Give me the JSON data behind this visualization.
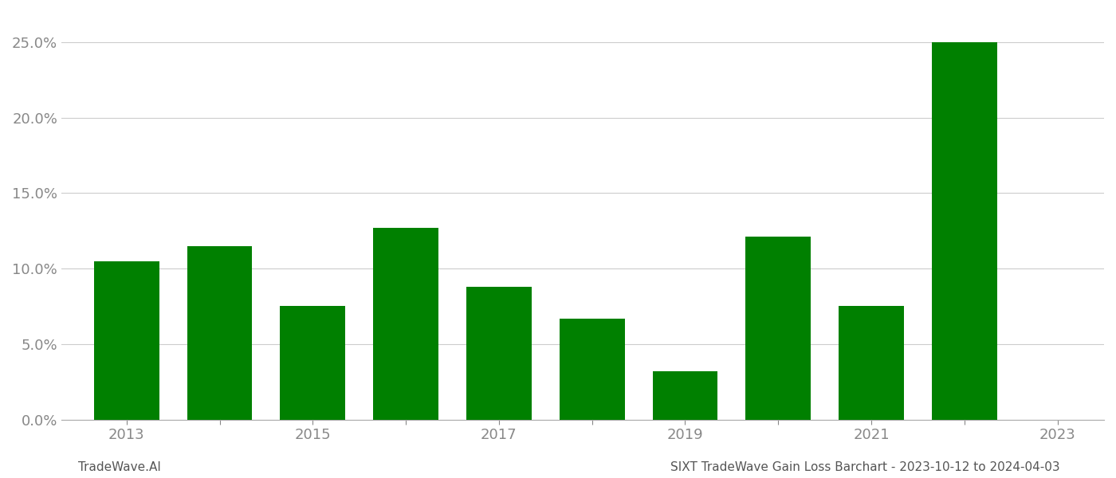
{
  "years": [
    2013,
    2014,
    2015,
    2016,
    2017,
    2018,
    2019,
    2020,
    2021,
    2022
  ],
  "values": [
    0.105,
    0.115,
    0.075,
    0.127,
    0.088,
    0.067,
    0.032,
    0.121,
    0.075,
    0.25
  ],
  "bar_color": "#008000",
  "background_color": "#ffffff",
  "grid_color": "#cccccc",
  "axis_label_color": "#888888",
  "ylim": [
    0,
    0.27
  ],
  "yticks": [
    0.0,
    0.05,
    0.1,
    0.15,
    0.2,
    0.25
  ],
  "tick_fontsize": 13,
  "footer_left": "TradeWave.AI",
  "footer_right": "SIXT TradeWave Gain Loss Barchart - 2023-10-12 to 2024-04-03",
  "footer_fontsize": 11,
  "bar_width": 0.7,
  "xlim_left": 2012.3,
  "xlim_right": 2023.5,
  "xticks_all": [
    2013,
    2014,
    2015,
    2016,
    2017,
    2018,
    2019,
    2020,
    2021,
    2022,
    2023
  ],
  "xtick_labels": [
    "2013",
    "",
    "2015",
    "",
    "2017",
    "",
    "2019",
    "",
    "2021",
    "",
    "2023"
  ]
}
